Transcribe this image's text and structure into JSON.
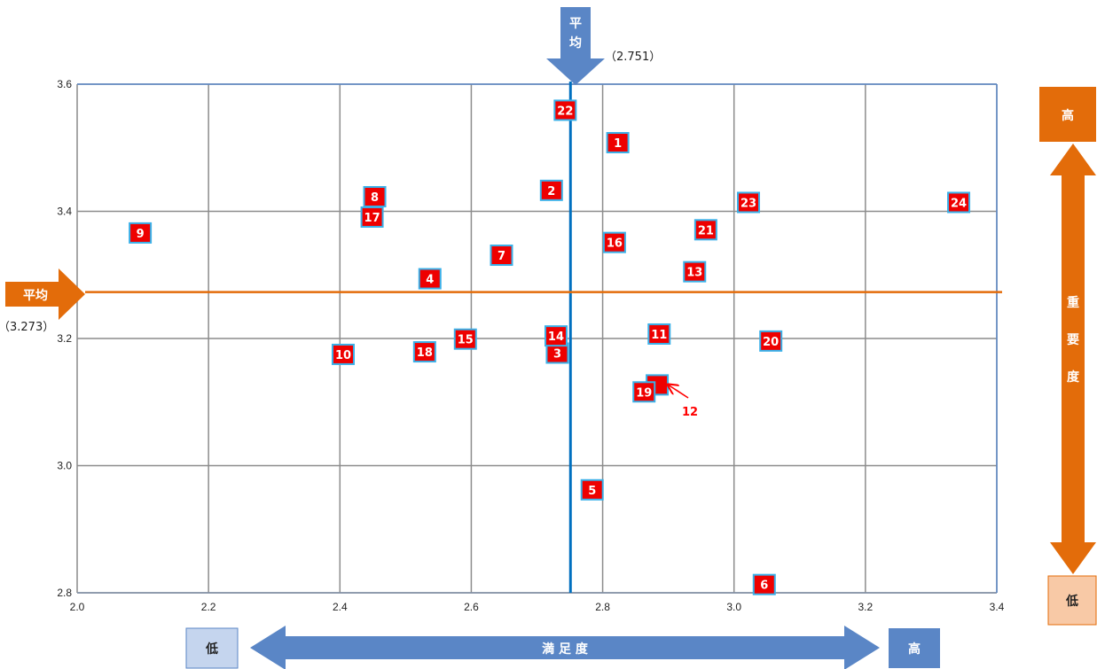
{
  "chart_data": {
    "type": "scatter",
    "xlim": [
      2.0,
      3.4
    ],
    "ylim": [
      2.8,
      3.6
    ],
    "x_ticks": [
      "2.0",
      "2.2",
      "2.4",
      "2.6",
      "2.8",
      "3.0",
      "3.2",
      "3.4"
    ],
    "y_ticks": [
      "2.8",
      "3.0",
      "3.2",
      "3.4",
      "3.6"
    ],
    "grid": true,
    "points": [
      {
        "label": "1",
        "x": 2.823,
        "y": 3.508
      },
      {
        "label": "2",
        "x": 2.722,
        "y": 3.433
      },
      {
        "label": "3",
        "x": 2.731,
        "y": 3.177
      },
      {
        "label": "4",
        "x": 2.537,
        "y": 3.294
      },
      {
        "label": "5",
        "x": 2.784,
        "y": 2.962
      },
      {
        "label": "6",
        "x": 3.046,
        "y": 2.813
      },
      {
        "label": "7",
        "x": 2.646,
        "y": 3.331
      },
      {
        "label": "8",
        "x": 2.453,
        "y": 3.423
      },
      {
        "label": "9",
        "x": 2.096,
        "y": 3.366
      },
      {
        "label": "10",
        "x": 2.405,
        "y": 3.175
      },
      {
        "label": "11",
        "x": 2.886,
        "y": 3.207
      },
      {
        "label": "12",
        "x": 2.883,
        "y": 3.127
      },
      {
        "label": "13",
        "x": 2.94,
        "y": 3.305
      },
      {
        "label": "14",
        "x": 2.729,
        "y": 3.204
      },
      {
        "label": "15",
        "x": 2.591,
        "y": 3.199
      },
      {
        "label": "16",
        "x": 2.818,
        "y": 3.351
      },
      {
        "label": "17",
        "x": 2.449,
        "y": 3.391
      },
      {
        "label": "18",
        "x": 2.529,
        "y": 3.179
      },
      {
        "label": "19",
        "x": 2.863,
        "y": 3.116
      },
      {
        "label": "20",
        "x": 3.056,
        "y": 3.196
      },
      {
        "label": "21",
        "x": 2.957,
        "y": 3.371
      },
      {
        "label": "22",
        "x": 2.743,
        "y": 3.559
      },
      {
        "label": "23",
        "x": 3.022,
        "y": 3.414
      },
      {
        "label": "24",
        "x": 3.342,
        "y": 3.414
      }
    ],
    "callout_label": "12",
    "avg_x": 2.751,
    "avg_y": 3.273,
    "avg_x_text": "（2.751）",
    "avg_y_text": "（3.273）",
    "avg_label": "平均",
    "x_axis_name": "満 足 度",
    "y_axis_name": "重 要 度",
    "low_label": "低",
    "high_label": "高",
    "colors": {
      "marker": "#ee0000",
      "marker_border": "#3ab0e8",
      "grid": "#8c8c8c",
      "avg_x_line": "#0070c0",
      "avg_y_line": "#e36c0a",
      "axis_arrow_blue": "#5a86c6",
      "axis_arrow_orange": "#e36c0a",
      "low_blue_box": "#c5d5ee",
      "low_orange_box": "#f8c9a6"
    }
  }
}
